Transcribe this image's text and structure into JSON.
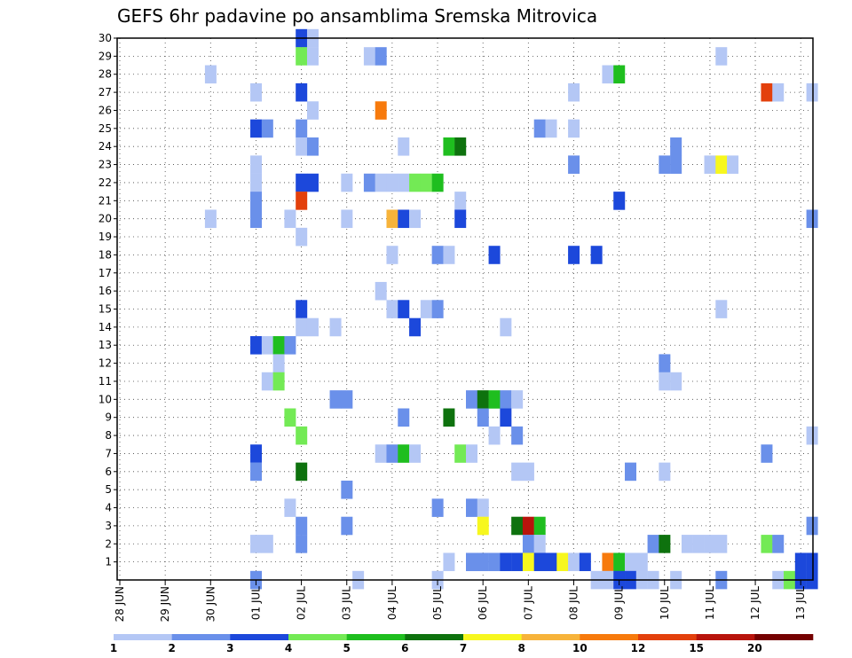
{
  "chart_data": {
    "type": "heatmap",
    "title": "GEFS 6hr padavine po ansamblima Sremska Mitrovica",
    "xlabel": "",
    "ylabel": "",
    "x_ticks": [
      "28 JUN",
      "29 JUN",
      "30 JUN",
      "01 JUL",
      "02 JUL",
      "03 JUL",
      "04 JUL",
      "05 JUL",
      "06 JUL",
      "07 JUL",
      "08 JUL",
      "09 JUL",
      "10 JUL",
      "11 JUL",
      "12 JUL",
      "13 JUL"
    ],
    "y_ticks": [
      "1",
      "2",
      "3",
      "4",
      "5",
      "6",
      "7",
      "8",
      "9",
      "10",
      "11",
      "12",
      "13",
      "14",
      "15",
      "16",
      "17",
      "18",
      "19",
      "20",
      "21",
      "22",
      "23",
      "24",
      "25",
      "26",
      "27",
      "28",
      "29",
      "30"
    ],
    "xlim_steps": [
      0,
      61
    ],
    "ylim_members": [
      0,
      30
    ],
    "x_unit": "6-hour steps from 28 JUN 00Z",
    "grid": true,
    "legend": {
      "placement": "bottom",
      "labels": [
        "1",
        "2",
        "3",
        "4",
        "5",
        "6",
        "7",
        "8",
        "10",
        "12",
        "15",
        "20"
      ],
      "colors": [
        "#b4c7f5",
        "#6a90ea",
        "#1c48db",
        "#73ea55",
        "#1fbe1f",
        "#0e720e",
        "#f7f71e",
        "#f7b33a",
        "#f77a0c",
        "#e3400c",
        "#b8140c",
        "#750000"
      ]
    },
    "cells": [
      [
        16,
        30,
        2
      ],
      [
        17,
        30,
        0
      ],
      [
        16,
        29,
        3
      ],
      [
        17,
        29,
        0
      ],
      [
        22,
        29,
        0
      ],
      [
        23,
        29,
        1
      ],
      [
        53,
        29,
        0
      ],
      [
        8,
        28,
        0
      ],
      [
        43,
        28,
        0
      ],
      [
        44,
        28,
        4
      ],
      [
        12,
        27,
        0
      ],
      [
        16,
        27,
        2
      ],
      [
        40,
        27,
        0
      ],
      [
        57,
        27,
        9
      ],
      [
        58,
        27,
        0
      ],
      [
        61,
        27,
        0
      ],
      [
        17,
        26,
        0
      ],
      [
        23,
        26,
        8
      ],
      [
        12,
        25,
        2
      ],
      [
        13,
        25,
        1
      ],
      [
        16,
        25,
        1
      ],
      [
        37,
        25,
        1
      ],
      [
        38,
        25,
        0
      ],
      [
        40,
        25,
        0
      ],
      [
        16,
        24,
        0
      ],
      [
        17,
        24,
        1
      ],
      [
        25,
        24,
        0
      ],
      [
        29,
        24,
        4
      ],
      [
        30,
        24,
        5
      ],
      [
        49,
        24,
        1
      ],
      [
        12,
        23,
        0
      ],
      [
        40,
        23,
        1
      ],
      [
        48,
        23,
        1
      ],
      [
        49,
        23,
        1
      ],
      [
        52,
        23,
        0
      ],
      [
        53,
        23,
        6
      ],
      [
        54,
        23,
        0
      ],
      [
        12,
        22,
        0
      ],
      [
        16,
        22,
        2
      ],
      [
        17,
        22,
        2
      ],
      [
        20,
        22,
        0
      ],
      [
        22,
        22,
        1
      ],
      [
        23,
        22,
        0
      ],
      [
        24,
        22,
        0
      ],
      [
        25,
        22,
        0
      ],
      [
        26,
        22,
        3
      ],
      [
        27,
        22,
        3
      ],
      [
        28,
        22,
        4
      ],
      [
        12,
        21,
        1
      ],
      [
        16,
        21,
        9
      ],
      [
        30,
        21,
        0
      ],
      [
        44,
        21,
        2
      ],
      [
        8,
        20,
        0
      ],
      [
        12,
        20,
        1
      ],
      [
        15,
        20,
        0
      ],
      [
        20,
        20,
        0
      ],
      [
        24,
        20,
        7
      ],
      [
        25,
        20,
        2
      ],
      [
        26,
        20,
        0
      ],
      [
        30,
        20,
        2
      ],
      [
        61,
        20,
        1
      ],
      [
        16,
        19,
        0
      ],
      [
        24,
        18,
        0
      ],
      [
        28,
        18,
        1
      ],
      [
        29,
        18,
        0
      ],
      [
        33,
        18,
        2
      ],
      [
        40,
        18,
        2
      ],
      [
        42,
        18,
        2
      ],
      [
        23,
        16,
        0
      ],
      [
        16,
        15,
        2
      ],
      [
        24,
        15,
        0
      ],
      [
        25,
        15,
        2
      ],
      [
        27,
        15,
        0
      ],
      [
        28,
        15,
        1
      ],
      [
        53,
        15,
        0
      ],
      [
        16,
        14,
        0
      ],
      [
        17,
        14,
        0
      ],
      [
        19,
        14,
        0
      ],
      [
        26,
        14,
        2
      ],
      [
        34,
        14,
        0
      ],
      [
        12,
        13,
        2
      ],
      [
        13,
        13,
        0
      ],
      [
        14,
        13,
        4
      ],
      [
        15,
        13,
        1
      ],
      [
        14,
        12,
        0
      ],
      [
        48,
        12,
        1
      ],
      [
        13,
        11,
        0
      ],
      [
        14,
        11,
        3
      ],
      [
        48,
        11,
        0
      ],
      [
        49,
        11,
        0
      ],
      [
        19,
        10,
        1
      ],
      [
        20,
        10,
        1
      ],
      [
        31,
        10,
        1
      ],
      [
        32,
        10,
        5
      ],
      [
        33,
        10,
        4
      ],
      [
        34,
        10,
        1
      ],
      [
        35,
        10,
        0
      ],
      [
        15,
        9,
        3
      ],
      [
        25,
        9,
        1
      ],
      [
        29,
        9,
        5
      ],
      [
        32,
        9,
        1
      ],
      [
        34,
        9,
        2
      ],
      [
        16,
        8,
        3
      ],
      [
        33,
        8,
        0
      ],
      [
        35,
        8,
        1
      ],
      [
        61,
        8,
        0
      ],
      [
        12,
        7,
        2
      ],
      [
        23,
        7,
        0
      ],
      [
        24,
        7,
        1
      ],
      [
        25,
        7,
        4
      ],
      [
        26,
        7,
        0
      ],
      [
        30,
        7,
        3
      ],
      [
        31,
        7,
        0
      ],
      [
        57,
        7,
        1
      ],
      [
        12,
        6,
        1
      ],
      [
        16,
        6,
        5
      ],
      [
        35,
        6,
        0
      ],
      [
        36,
        6,
        0
      ],
      [
        45,
        6,
        1
      ],
      [
        48,
        6,
        0
      ],
      [
        20,
        5,
        1
      ],
      [
        15,
        4,
        0
      ],
      [
        28,
        4,
        1
      ],
      [
        31,
        4,
        1
      ],
      [
        32,
        4,
        0
      ],
      [
        16,
        3,
        1
      ],
      [
        20,
        3,
        1
      ],
      [
        32,
        3,
        6
      ],
      [
        35,
        3,
        5
      ],
      [
        36,
        3,
        10
      ],
      [
        37,
        3,
        4
      ],
      [
        61,
        3,
        1
      ],
      [
        12,
        2,
        0
      ],
      [
        13,
        2,
        0
      ],
      [
        16,
        2,
        1
      ],
      [
        36,
        2,
        1
      ],
      [
        37,
        2,
        0
      ],
      [
        47,
        2,
        1
      ],
      [
        48,
        2,
        5
      ],
      [
        50,
        2,
        0
      ],
      [
        51,
        2,
        0
      ],
      [
        52,
        2,
        0
      ],
      [
        53,
        2,
        0
      ],
      [
        57,
        2,
        3
      ],
      [
        58,
        2,
        1
      ],
      [
        29,
        1,
        0
      ],
      [
        31,
        1,
        1
      ],
      [
        32,
        1,
        1
      ],
      [
        33,
        1,
        1
      ],
      [
        34,
        1,
        2
      ],
      [
        35,
        1,
        2
      ],
      [
        36,
        1,
        6
      ],
      [
        37,
        1,
        2
      ],
      [
        38,
        1,
        2
      ],
      [
        39,
        1,
        6
      ],
      [
        40,
        1,
        0
      ],
      [
        41,
        1,
        2
      ],
      [
        43,
        1,
        8
      ],
      [
        44,
        1,
        4
      ],
      [
        45,
        1,
        0
      ],
      [
        46,
        1,
        0
      ],
      [
        60,
        1,
        2
      ],
      [
        61,
        1,
        2
      ],
      [
        12,
        0,
        1
      ],
      [
        21,
        0,
        0
      ],
      [
        28,
        0,
        0
      ],
      [
        42,
        0,
        0
      ],
      [
        43,
        0,
        0
      ],
      [
        44,
        0,
        2
      ],
      [
        45,
        0,
        2
      ],
      [
        46,
        0,
        0
      ],
      [
        47,
        0,
        0
      ],
      [
        49,
        0,
        0
      ],
      [
        53,
        0,
        1
      ],
      [
        58,
        0,
        0
      ],
      [
        59,
        0,
        3
      ],
      [
        60,
        0,
        2
      ],
      [
        61,
        0,
        2
      ]
    ]
  }
}
